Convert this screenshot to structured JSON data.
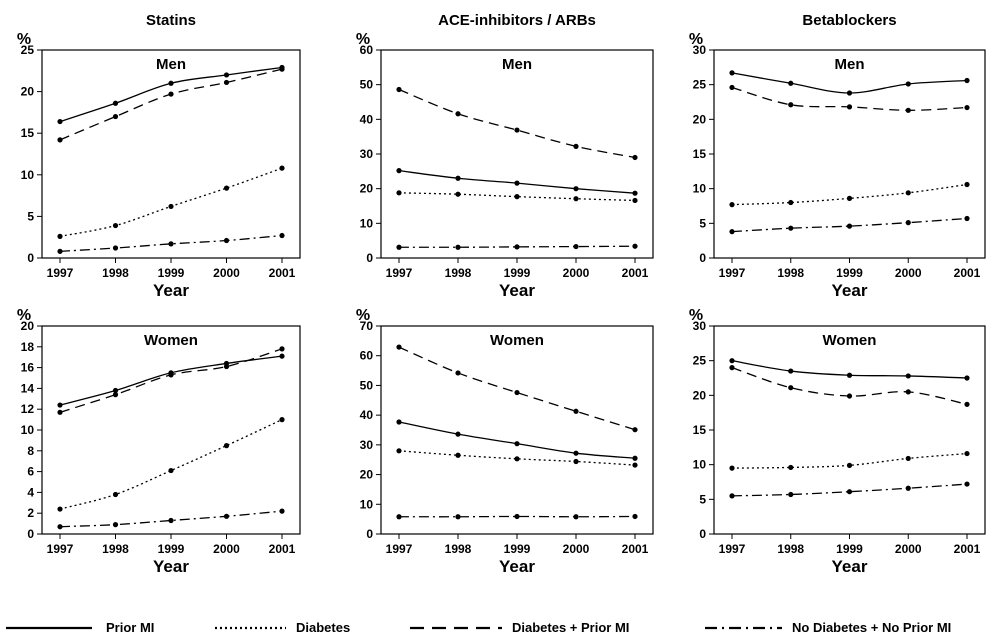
{
  "chart_data": [
    {
      "type": "line",
      "column": 0,
      "row": 0,
      "title": "Statins",
      "subtitle": "Men",
      "ylabel": "%",
      "xlabel": "Year",
      "x": [
        1997,
        1998,
        1999,
        2000,
        2001
      ],
      "ylim": [
        0,
        25
      ],
      "yticks": [
        0,
        5,
        10,
        15,
        20,
        25
      ],
      "series": [
        {
          "name": "Prior MI",
          "style": "solid",
          "values": [
            16.4,
            18.6,
            21.0,
            22.0,
            22.9
          ]
        },
        {
          "name": "Diabetes",
          "style": "dotted",
          "values": [
            2.6,
            3.9,
            6.2,
            8.4,
            10.8
          ]
        },
        {
          "name": "Diabetes + Prior MI",
          "style": "dashed",
          "values": [
            14.2,
            17.0,
            19.7,
            21.1,
            22.7
          ]
        },
        {
          "name": "No Diabetes + No Prior MI",
          "style": "dashdot",
          "values": [
            0.8,
            1.2,
            1.7,
            2.1,
            2.7
          ]
        }
      ]
    },
    {
      "type": "line",
      "column": 1,
      "row": 0,
      "title": "ACE-inhibitors / ARBs",
      "subtitle": "Men",
      "ylabel": "%",
      "xlabel": "Year",
      "x": [
        1997,
        1998,
        1999,
        2000,
        2001
      ],
      "ylim": [
        0,
        60
      ],
      "yticks": [
        0,
        10,
        20,
        30,
        40,
        50,
        60
      ],
      "series": [
        {
          "name": "Prior MI",
          "style": "solid",
          "values": [
            25.2,
            23.0,
            21.6,
            20.0,
            18.7
          ]
        },
        {
          "name": "Diabetes",
          "style": "dotted",
          "values": [
            18.8,
            18.4,
            17.7,
            17.1,
            16.6
          ]
        },
        {
          "name": "Diabetes + Prior MI",
          "style": "dashed",
          "values": [
            48.6,
            41.6,
            36.9,
            32.2,
            29.0
          ]
        },
        {
          "name": "No Diabetes + No Prior MI",
          "style": "dashdot",
          "values": [
            3.1,
            3.1,
            3.2,
            3.3,
            3.4
          ]
        }
      ]
    },
    {
      "type": "line",
      "column": 2,
      "row": 0,
      "title": "Betablockers",
      "subtitle": "Men",
      "ylabel": "%",
      "xlabel": "Year",
      "x": [
        1997,
        1998,
        1999,
        2000,
        2001
      ],
      "ylim": [
        0,
        30
      ],
      "yticks": [
        0,
        5,
        10,
        15,
        20,
        25,
        30
      ],
      "series": [
        {
          "name": "Prior MI",
          "style": "solid",
          "values": [
            26.7,
            25.2,
            23.8,
            25.1,
            25.6
          ]
        },
        {
          "name": "Diabetes",
          "style": "dotted",
          "values": [
            7.7,
            8.0,
            8.6,
            9.4,
            10.6
          ]
        },
        {
          "name": "Diabetes + Prior MI",
          "style": "dashed",
          "values": [
            24.6,
            22.1,
            21.8,
            21.3,
            21.7
          ]
        },
        {
          "name": "No Diabetes + No Prior MI",
          "style": "dashdot",
          "values": [
            3.8,
            4.3,
            4.6,
            5.1,
            5.7
          ]
        }
      ]
    },
    {
      "type": "line",
      "column": 0,
      "row": 1,
      "title": "",
      "subtitle": "Women",
      "ylabel": "%",
      "xlabel": "Year",
      "x": [
        1997,
        1998,
        1999,
        2000,
        2001
      ],
      "ylim": [
        0,
        20
      ],
      "yticks": [
        0,
        2,
        4,
        6,
        8,
        10,
        12,
        14,
        16,
        18,
        20
      ],
      "series": [
        {
          "name": "Prior MI",
          "style": "solid",
          "values": [
            12.4,
            13.8,
            15.5,
            16.4,
            17.1
          ]
        },
        {
          "name": "Diabetes",
          "style": "dotted",
          "values": [
            2.4,
            3.8,
            6.1,
            8.5,
            11.0
          ]
        },
        {
          "name": "Diabetes + Prior MI",
          "style": "dashed",
          "values": [
            11.7,
            13.4,
            15.3,
            16.1,
            17.8
          ]
        },
        {
          "name": "No Diabetes + No Prior MI",
          "style": "dashdot",
          "values": [
            0.7,
            0.9,
            1.3,
            1.7,
            2.2
          ]
        }
      ]
    },
    {
      "type": "line",
      "column": 1,
      "row": 1,
      "title": "",
      "subtitle": "Women",
      "ylabel": "%",
      "xlabel": "Year",
      "x": [
        1997,
        1998,
        1999,
        2000,
        2001
      ],
      "ylim": [
        0,
        70
      ],
      "yticks": [
        0,
        10,
        20,
        30,
        40,
        50,
        60,
        70
      ],
      "series": [
        {
          "name": "Prior MI",
          "style": "solid",
          "values": [
            37.7,
            33.6,
            30.4,
            27.2,
            25.5
          ]
        },
        {
          "name": "Diabetes",
          "style": "dotted",
          "values": [
            28.0,
            26.5,
            25.3,
            24.4,
            23.2
          ]
        },
        {
          "name": "Diabetes + Prior MI",
          "style": "dashed",
          "values": [
            62.9,
            54.2,
            47.6,
            41.3,
            35.1
          ]
        },
        {
          "name": "No Diabetes + No Prior MI",
          "style": "dashdot",
          "values": [
            5.8,
            5.8,
            5.9,
            5.8,
            5.9
          ]
        }
      ]
    },
    {
      "type": "line",
      "column": 2,
      "row": 1,
      "title": "",
      "subtitle": "Women",
      "ylabel": "%",
      "xlabel": "Year",
      "x": [
        1997,
        1998,
        1999,
        2000,
        2001
      ],
      "ylim": [
        0,
        30
      ],
      "yticks": [
        0,
        5,
        10,
        15,
        20,
        25,
        30
      ],
      "series": [
        {
          "name": "Prior MI",
          "style": "solid",
          "values": [
            25.0,
            23.5,
            22.9,
            22.8,
            22.5
          ]
        },
        {
          "name": "Diabetes",
          "style": "dotted",
          "values": [
            9.5,
            9.6,
            9.9,
            10.9,
            11.6
          ]
        },
        {
          "name": "Diabetes + Prior MI",
          "style": "dashed",
          "values": [
            24.0,
            21.1,
            19.9,
            20.5,
            18.7
          ]
        },
        {
          "name": "No Diabetes + No Prior MI",
          "style": "dashdot",
          "values": [
            5.5,
            5.7,
            6.1,
            6.6,
            7.2
          ]
        }
      ]
    }
  ],
  "legend": [
    {
      "label": "Prior MI",
      "style": "solid"
    },
    {
      "label": "Diabetes",
      "style": "dotted"
    },
    {
      "label": "Diabetes + Prior MI",
      "style": "dashed"
    },
    {
      "label": "No Diabetes + No Prior MI",
      "style": "dashdot"
    }
  ]
}
